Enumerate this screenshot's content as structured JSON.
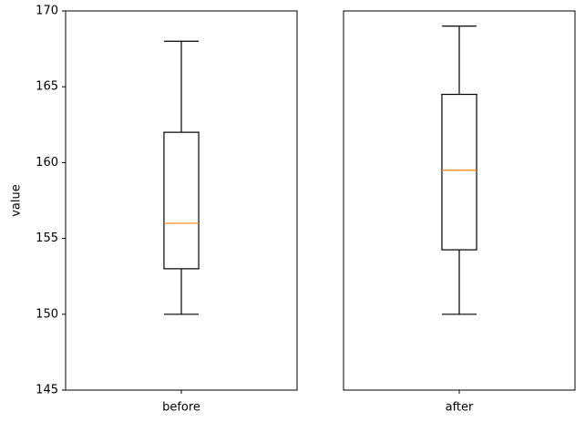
{
  "chart_data": [
    {
      "type": "box",
      "ylabel": "value",
      "category": "before",
      "low": 150,
      "q1": 153,
      "median": 156,
      "q3": 162,
      "high": 168,
      "color": "#000000",
      "median_color": "#ff7f0e",
      "ylim": [
        145,
        170
      ],
      "yticks": [
        145,
        150,
        155,
        160,
        165,
        170
      ]
    },
    {
      "type": "box",
      "category": "after",
      "low": 150,
      "q1": 154.25,
      "median": 159.5,
      "q3": 164.5,
      "high": 169,
      "color": "#000000",
      "median_color": "#ff7f0e",
      "ylim": [
        145,
        170
      ]
    }
  ]
}
